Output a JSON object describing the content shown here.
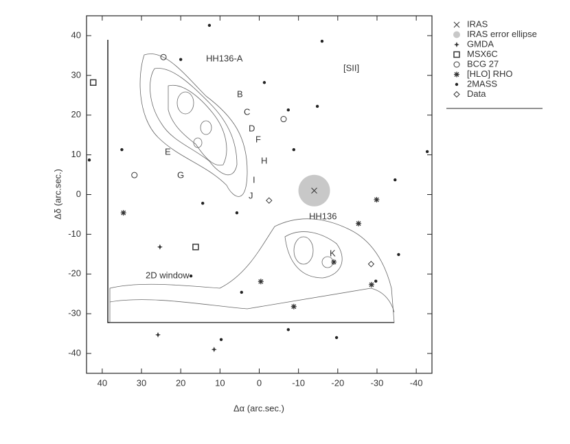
{
  "chart_data": {
    "type": "scatter",
    "x_label": "Δα (arc.sec.)",
    "y_label": "Δδ (arc.sec.)",
    "xlim": [
      44,
      -44
    ],
    "ylim": [
      -45,
      45
    ],
    "xticks": [
      40,
      30,
      20,
      10,
      0,
      -10,
      -20,
      -30,
      -40
    ],
    "yticks": [
      40,
      30,
      20,
      10,
      0,
      -10,
      -20,
      -30,
      -40
    ],
    "annotations": [
      "HH136-A",
      "[SII]",
      "HH136",
      "B",
      "C",
      "D",
      "E",
      "F",
      "G",
      "H",
      "I",
      "J",
      "K",
      "2D window"
    ],
    "series": [
      {
        "name": "IRAS",
        "marker": "cross",
        "color": "#333333",
        "x": [
          -14
        ],
        "y": [
          1
        ]
      },
      {
        "name": "IRAS error ellipse",
        "marker": "disc",
        "color": "#c8c8c8",
        "x": [
          -14
        ],
        "y": [
          1
        ]
      },
      {
        "name": "GMDA",
        "marker": "star",
        "color": "#333333",
        "x": [
          25.3,
          25.8,
          11.5
        ],
        "y": [
          -13.2,
          -35.3,
          -39
        ]
      },
      {
        "name": "MSX6C",
        "marker": "square",
        "color": "#333333",
        "x": [
          42.3,
          16.2
        ],
        "y": [
          28.2,
          -13.2
        ]
      },
      {
        "name": "BCG 27",
        "marker": "circle",
        "color": "#333333",
        "x": [
          31.8,
          -6.2,
          24.4
        ],
        "y": [
          4.9,
          19,
          34.6
        ]
      },
      {
        "name": "[HLO] RHO",
        "marker": "asterisk",
        "color": "#333333",
        "x": [
          34.6,
          -29.9,
          -25.3,
          -19,
          -0.4,
          -8.8,
          -28.6
        ],
        "y": [
          -4.6,
          -1.3,
          -7.3,
          -17,
          -21.9,
          -28.2,
          -22.7
        ]
      },
      {
        "name": "2MASS",
        "marker": "dot",
        "color": "#222222",
        "x": [
          20,
          12.7,
          -16,
          -1.3,
          -7.4,
          -14.8,
          -8.8,
          -42.8,
          35,
          43.3,
          14.4,
          5.7,
          4.5,
          -7.4,
          -19.7,
          9.7,
          -35.5,
          -34.6,
          17.4,
          -29.7
        ],
        "y": [
          34,
          42.6,
          38.6,
          28.2,
          21.3,
          22.2,
          11.3,
          10.8,
          11.3,
          8.7,
          -2.2,
          -4.6,
          -24.6,
          -34,
          -36,
          -36.5,
          -15.1,
          3.7,
          -20.5,
          -21.8
        ]
      },
      {
        "name": "Data",
        "marker": "diamond",
        "color": "#333333",
        "x": [
          -2.5,
          -28.5
        ],
        "y": [
          -1.5,
          -17.5
        ]
      }
    ]
  }
}
